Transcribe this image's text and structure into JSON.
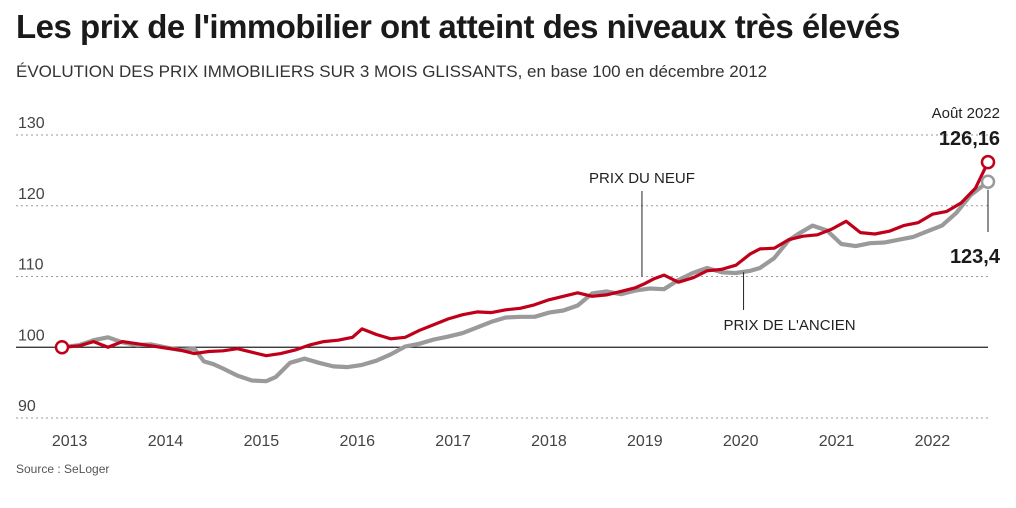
{
  "title": "Les prix de l'immobilier ont atteint des niveaux très élevés",
  "subtitle": "ÉVOLUTION DES PRIX IMMOBILIERS SUR 3 MOIS GLISSANTS, en base 100 en décembre 2012",
  "source": "Source : SeLoger",
  "colors": {
    "neuf": "#c0001a",
    "ancien": "#9a9a9a"
  },
  "annotations": {
    "end_date": "Août 2022",
    "neuf_end": "126,16",
    "ancien_end": "123,4",
    "neuf_label": "PRIX DU NEUF",
    "ancien_label": "PRIX DE L'ANCIEN"
  },
  "chart_data": {
    "type": "line",
    "title": "Les prix de l'immobilier ont atteint des niveaux très élevés",
    "subtitle": "ÉVOLUTION DES PRIX IMMOBILIERS SUR 3 MOIS GLISSANTS, en base 100 en décembre 2012",
    "xlim": [
      2012.92,
      2022.58
    ],
    "ylim": [
      88,
      130
    ],
    "yticks": [
      90,
      100,
      110,
      120,
      130
    ],
    "ytick_labels": [
      "90",
      "100",
      "110",
      "120",
      "130"
    ],
    "xticks": [
      "2013",
      "2014",
      "2015",
      "2016",
      "2017",
      "2018",
      "2019",
      "2020",
      "2021",
      "2022"
    ],
    "baseline": 100,
    "grid": "dotted horizontal",
    "series": [
      {
        "name": "PRIX DU NEUF",
        "x": [
          2012.92,
          2013.1,
          2013.25,
          2013.4,
          2013.55,
          2013.7,
          2013.85,
          2014.0,
          2014.15,
          2014.3,
          2014.45,
          2014.6,
          2014.75,
          2014.9,
          2015.05,
          2015.2,
          2015.35,
          2015.5,
          2015.65,
          2015.8,
          2015.95,
          2016.05,
          2016.2,
          2016.35,
          2016.5,
          2016.65,
          2016.8,
          2016.95,
          2017.1,
          2017.25,
          2017.4,
          2017.55,
          2017.7,
          2017.85,
          2018.0,
          2018.15,
          2018.3,
          2018.45,
          2018.6,
          2018.75,
          2018.9,
          2019.0,
          2019.1,
          2019.2,
          2019.35,
          2019.5,
          2019.65,
          2019.8,
          2019.95,
          2020.1,
          2020.2,
          2020.35,
          2020.5,
          2020.65,
          2020.8,
          2020.95,
          2021.1,
          2021.25,
          2021.4,
          2021.55,
          2021.7,
          2021.85,
          2022.0,
          2022.15,
          2022.3,
          2022.45,
          2022.58
        ],
        "values": [
          100,
          100.2,
          100.8,
          100.0,
          100.8,
          100.5,
          100.2,
          99.9,
          99.6,
          99.1,
          99.4,
          99.5,
          99.8,
          99.3,
          98.8,
          99.1,
          99.6,
          100.3,
          100.8,
          101.0,
          101.4,
          102.6,
          101.8,
          101.2,
          101.4,
          102.4,
          103.2,
          104.0,
          104.6,
          105.0,
          104.9,
          105.3,
          105.5,
          106.0,
          106.7,
          107.2,
          107.7,
          107.2,
          107.4,
          107.9,
          108.4,
          109.0,
          109.7,
          110.2,
          109.2,
          109.8,
          110.8,
          111.0,
          111.6,
          113.2,
          113.9,
          114.0,
          115.2,
          115.7,
          115.9,
          116.7,
          117.8,
          116.2,
          116.0,
          116.4,
          117.2,
          117.6,
          118.8,
          119.2,
          120.4,
          122.5,
          126.16
        ]
      },
      {
        "name": "PRIX DE L'ANCIEN",
        "x": [
          2012.92,
          2013.1,
          2013.25,
          2013.4,
          2013.55,
          2013.7,
          2013.85,
          2014.0,
          2014.15,
          2014.3,
          2014.4,
          2014.5,
          2014.6,
          2014.75,
          2014.9,
          2015.05,
          2015.15,
          2015.3,
          2015.45,
          2015.6,
          2015.75,
          2015.9,
          2016.05,
          2016.2,
          2016.35,
          2016.5,
          2016.65,
          2016.8,
          2016.95,
          2017.1,
          2017.25,
          2017.4,
          2017.55,
          2017.7,
          2017.85,
          2018.0,
          2018.15,
          2018.3,
          2018.45,
          2018.6,
          2018.75,
          2018.9,
          2019.05,
          2019.2,
          2019.35,
          2019.5,
          2019.65,
          2019.8,
          2019.95,
          2020.1,
          2020.2,
          2020.35,
          2020.5,
          2020.6,
          2020.75,
          2020.9,
          2021.05,
          2021.2,
          2021.35,
          2021.5,
          2021.65,
          2021.8,
          2021.95,
          2022.1,
          2022.25,
          2022.4,
          2022.58
        ],
        "values": [
          100,
          100.3,
          101.0,
          101.4,
          100.7,
          100.3,
          100.4,
          100.0,
          99.6,
          99.8,
          98.0,
          97.6,
          97.0,
          96.0,
          95.3,
          95.2,
          95.8,
          97.8,
          98.4,
          97.8,
          97.3,
          97.2,
          97.5,
          98.1,
          99.0,
          100.1,
          100.5,
          101.1,
          101.5,
          102.0,
          102.8,
          103.6,
          104.2,
          104.3,
          104.3,
          104.9,
          105.2,
          105.9,
          107.6,
          107.9,
          107.5,
          108.0,
          108.3,
          108.2,
          109.5,
          110.5,
          111.2,
          110.6,
          110.5,
          110.8,
          111.2,
          112.6,
          115.1,
          116.0,
          117.2,
          116.5,
          114.6,
          114.3,
          114.7,
          114.8,
          115.2,
          115.6,
          116.4,
          117.2,
          119.0,
          121.5,
          123.4
        ]
      }
    ]
  }
}
